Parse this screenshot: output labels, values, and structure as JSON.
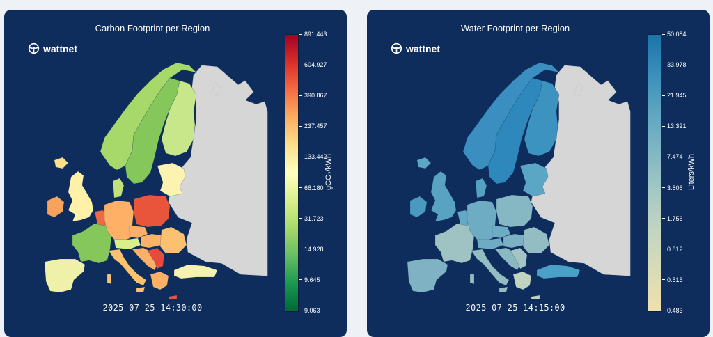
{
  "brand": {
    "name": "wattnet"
  },
  "panels": [
    {
      "title": "Carbon Footprint per Region",
      "timestamp": "2025-07-25 14:30:00",
      "colorbar": {
        "unit": "gCO₂/kWh",
        "ticks": [
          "891.443",
          "604.927",
          "390.867",
          "237.457",
          "133.442",
          "68.180",
          "31.723",
          "14.928",
          "9.645",
          "9.063"
        ],
        "colors": [
          "#a50026",
          "#d73027",
          "#f46d43",
          "#fdae61",
          "#fee08b",
          "#ffffbf",
          "#d9ef8b",
          "#a6d96a",
          "#66bd63",
          "#1a9850",
          "#006837"
        ]
      },
      "regions": {
        "norway": "#a6d96a",
        "sweden": "#86c75c",
        "finland": "#c8e68a",
        "baltics": "#fdf3b0",
        "uk": "#fff2a8",
        "ireland": "#f7a35c",
        "france": "#86c75c",
        "iberia": "#eef1a7",
        "benelux": "#ef6a44",
        "germany": "#fdb066",
        "poland": "#e8553a",
        "czech": "#fdb066",
        "austria": "#d9ef8b",
        "hungary": "#fbb36a",
        "romania": "#fcc071",
        "italy": "#fdc36c",
        "balkans": "#fdb066",
        "serbia": "#e84a3e",
        "greece": "#fdb066",
        "turkey": "#f4f2b0",
        "crete": "#e8553a",
        "denmark": "#c3e179",
        "iceland": "#fee08b",
        "nonservice": "#d6d6d6"
      }
    },
    {
      "title": "Water Footprint per Region",
      "timestamp": "2025-07-25 14:15:00",
      "colorbar": {
        "unit": "Liters/kWh",
        "ticks": [
          "50.084",
          "33.978",
          "21.945",
          "13.321",
          "7.474",
          "3.806",
          "1.756",
          "0.812",
          "0.515",
          "0.483"
        ],
        "colors": [
          "#1b74a8",
          "#3a8fba",
          "#5fa6c2",
          "#82b7c4",
          "#a6c9c4",
          "#c3d6c0",
          "#d9dcb6",
          "#f0e0ad"
        ]
      },
      "regions": {
        "norway": "#3b8fc0",
        "sweden": "#2e88bb",
        "finland": "#3d93bf",
        "baltics": "#5ba5c5",
        "uk": "#59a2c2",
        "ireland": "#4a9ac0",
        "france": "#9fc2c2",
        "iberia": "#7fb2c2",
        "benelux": "#63a8c4",
        "germany": "#6dacc3",
        "poland": "#86b8c3",
        "czech": "#6dacc3",
        "austria": "#6dacc3",
        "hungary": "#7bb1c2",
        "romania": "#93bcc3",
        "italy": "#93bcc3",
        "balkans": "#8ab9c2",
        "serbia": "#a4c5c3",
        "greece": "#c0d4c0",
        "turkey": "#4aa0c6",
        "crete": "#c0d4c0",
        "denmark": "#55a1c4",
        "iceland": "#5ba5c5",
        "nonservice": "#d6d6d6"
      }
    }
  ]
}
